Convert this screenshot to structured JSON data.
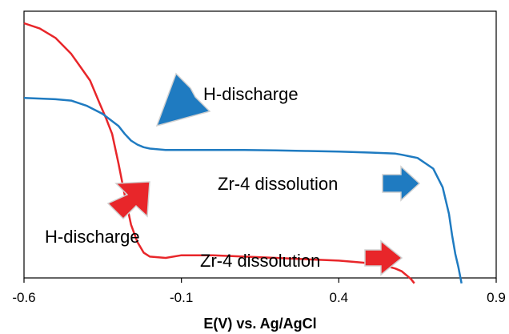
{
  "chart_data": {
    "type": "line",
    "title": "",
    "xlabel": "E(V) vs. Ag/AgCl",
    "ylabel": "",
    "xlim": [
      -0.6,
      0.9
    ],
    "ylim": [
      0,
      1
    ],
    "x_ticks": [
      -0.6,
      -0.1,
      0.4,
      0.9
    ],
    "x_tick_labels": [
      "-0.6",
      "-0.1",
      "0.4",
      "0.9"
    ],
    "grid": false,
    "series": [
      {
        "color": "#e8262a",
        "x": [
          -0.6,
          -0.55,
          -0.5,
          -0.45,
          -0.42,
          -0.39,
          -0.36,
          -0.34,
          -0.32,
          -0.3,
          -0.28,
          -0.26,
          -0.24,
          -0.22,
          -0.2,
          -0.15,
          -0.1,
          0.0,
          0.1,
          0.2,
          0.3,
          0.4,
          0.45,
          0.5,
          0.55,
          0.58,
          0.6,
          0.61,
          0.62,
          0.63,
          0.64
        ],
        "y": [
          0.955,
          0.935,
          0.9,
          0.84,
          0.79,
          0.74,
          0.655,
          0.6,
          0.54,
          0.43,
          0.31,
          0.2,
          0.135,
          0.095,
          0.08,
          0.075,
          0.085,
          0.085,
          0.08,
          0.075,
          0.07,
          0.065,
          0.06,
          0.055,
          0.045,
          0.035,
          0.025,
          0.015,
          0.005,
          -0.005,
          -0.02
        ]
      },
      {
        "color": "#1f7bc1",
        "x": [
          -0.6,
          -0.5,
          -0.45,
          -0.4,
          -0.35,
          -0.3,
          -0.28,
          -0.26,
          -0.24,
          -0.22,
          -0.2,
          -0.15,
          -0.1,
          0.0,
          0.1,
          0.2,
          0.3,
          0.4,
          0.5,
          0.55,
          0.58,
          0.6,
          0.65,
          0.7,
          0.73,
          0.75,
          0.76,
          0.77,
          0.78,
          0.79
        ],
        "y": [
          0.675,
          0.67,
          0.665,
          0.645,
          0.615,
          0.57,
          0.54,
          0.515,
          0.5,
          0.49,
          0.485,
          0.48,
          0.48,
          0.48,
          0.48,
          0.478,
          0.476,
          0.474,
          0.47,
          0.468,
          0.466,
          0.462,
          0.45,
          0.41,
          0.34,
          0.24,
          0.16,
          0.09,
          0.04,
          -0.02
        ]
      }
    ],
    "annotations": [
      {
        "text": "H-discharge",
        "arrow_color": "#1f7bc1"
      },
      {
        "text": "Zr-4 dissolution",
        "arrow_color": "#1f7bc1"
      },
      {
        "text": "H-discharge",
        "arrow_color": "#e8262a"
      },
      {
        "text": "Zr-4 dissolution",
        "arrow_color": "#e8262a"
      }
    ]
  }
}
